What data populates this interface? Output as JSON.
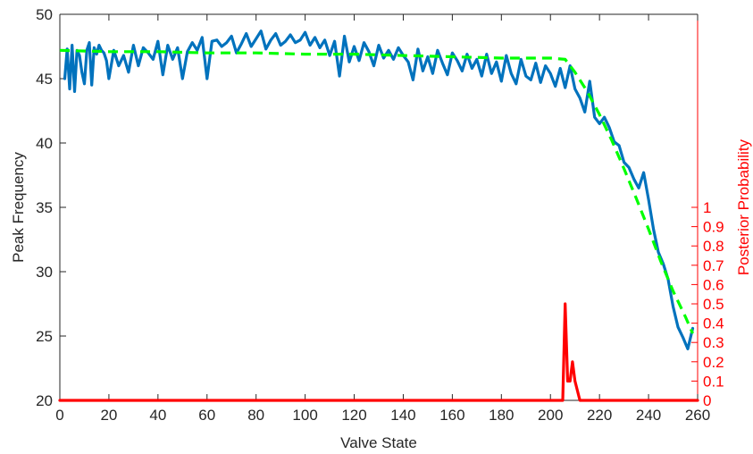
{
  "chart_data": {
    "type": "line",
    "title": "",
    "xlabel": "Valve State",
    "ylabel": "Peak Frequency",
    "y2label": "Posterior Probability",
    "xlim": [
      0,
      260
    ],
    "ylim": [
      20,
      50
    ],
    "y2lim": [
      0,
      1
    ],
    "x_ticks": [
      0,
      20,
      40,
      60,
      80,
      100,
      120,
      140,
      160,
      180,
      200,
      220,
      240,
      260
    ],
    "y_ticks": [
      20,
      25,
      30,
      35,
      40,
      45,
      50
    ],
    "y2_ticks": [
      0,
      0.1,
      0.2,
      0.3,
      0.4,
      0.5,
      0.6,
      0.7,
      0.8,
      0.9,
      1
    ],
    "grid": false,
    "colors": {
      "peak": "#0072BD",
      "fit": "#00FF00",
      "posterior": "#FF0000",
      "axis": "#262626"
    },
    "series": [
      {
        "axis": "left",
        "style": "solid",
        "x": [
          2,
          3,
          4,
          5,
          6,
          7,
          8,
          9,
          10,
          11,
          12,
          13,
          14,
          15,
          16,
          17,
          18,
          19,
          20,
          22,
          24,
          26,
          28,
          30,
          32,
          34,
          36,
          38,
          40,
          42,
          44,
          46,
          48,
          50,
          52,
          54,
          56,
          58,
          60,
          62,
          64,
          66,
          68,
          70,
          72,
          74,
          76,
          78,
          80,
          82,
          84,
          86,
          88,
          90,
          92,
          94,
          96,
          98,
          100,
          102,
          104,
          106,
          108,
          110,
          112,
          114,
          116,
          118,
          120,
          122,
          124,
          126,
          128,
          130,
          132,
          134,
          136,
          138,
          140,
          142,
          144,
          146,
          148,
          150,
          152,
          154,
          156,
          158,
          160,
          162,
          164,
          166,
          168,
          170,
          172,
          174,
          176,
          178,
          180,
          182,
          184,
          186,
          188,
          190,
          192,
          194,
          196,
          198,
          200,
          202,
          204,
          206,
          208,
          210,
          212,
          214,
          216,
          218,
          220,
          222,
          224,
          226,
          228,
          230,
          232,
          234,
          236,
          238,
          240,
          242,
          244,
          246,
          248,
          250,
          252,
          254,
          256,
          258
        ],
        "values": [
          45.0,
          47.3,
          44.2,
          47.6,
          44.0,
          47.2,
          46.8,
          45.5,
          44.6,
          47.2,
          47.8,
          44.5,
          47.4,
          46.9,
          47.6,
          47.2,
          47.0,
          46.4,
          45.0,
          47.2,
          46.0,
          46.8,
          45.5,
          47.6,
          46.0,
          47.4,
          47.0,
          46.5,
          47.9,
          45.3,
          47.6,
          46.5,
          47.4,
          45.0,
          47.1,
          47.8,
          47.2,
          48.2,
          45.0,
          47.9,
          48.0,
          47.5,
          47.8,
          48.3,
          47.0,
          47.7,
          48.5,
          47.5,
          48.1,
          48.7,
          47.3,
          48.0,
          48.5,
          47.6,
          47.9,
          48.4,
          47.8,
          48.0,
          48.6,
          47.6,
          48.2,
          47.4,
          48.0,
          46.8,
          47.9,
          45.2,
          48.3,
          46.3,
          47.5,
          46.4,
          47.8,
          47.1,
          46.0,
          47.6,
          46.6,
          47.2,
          46.5,
          47.4,
          46.8,
          46.3,
          44.9,
          47.3,
          45.6,
          46.7,
          45.4,
          47.2,
          46.2,
          45.3,
          47.0,
          46.4,
          45.6,
          46.9,
          45.8,
          46.5,
          45.2,
          46.9,
          45.4,
          46.3,
          44.8,
          46.8,
          45.4,
          44.6,
          46.5,
          45.2,
          44.9,
          46.2,
          44.7,
          46.0,
          45.4,
          44.4,
          45.8,
          44.3,
          46.0,
          44.2,
          43.5,
          42.4,
          44.8,
          42.0,
          41.5,
          42.0,
          41.2,
          40.1,
          39.8,
          38.5,
          38.1,
          37.2,
          36.5,
          37.7,
          35.6,
          33.3,
          31.5,
          30.6,
          29.4,
          27.3,
          25.7,
          24.9,
          24.0,
          25.6
        ]
      },
      {
        "axis": "left",
        "style": "dashed",
        "x": [
          0,
          20,
          40,
          60,
          80,
          100,
          120,
          140,
          160,
          180,
          200,
          206,
          210,
          215,
          220,
          225,
          230,
          235,
          240,
          245,
          250,
          255,
          258
        ],
        "values": [
          47.2,
          47.1,
          47.1,
          47.0,
          47.0,
          46.9,
          46.9,
          46.8,
          46.7,
          46.6,
          46.6,
          46.5,
          45.5,
          44.0,
          42.2,
          40.2,
          38.0,
          35.7,
          33.3,
          30.8,
          28.5,
          26.5,
          25.2
        ]
      },
      {
        "axis": "right",
        "style": "solid",
        "x": [
          0,
          205,
          206,
          207,
          208,
          209,
          210,
          212,
          260
        ],
        "values": [
          0,
          0,
          0.5,
          0.1,
          0.1,
          0.2,
          0.1,
          0,
          0
        ]
      }
    ]
  }
}
